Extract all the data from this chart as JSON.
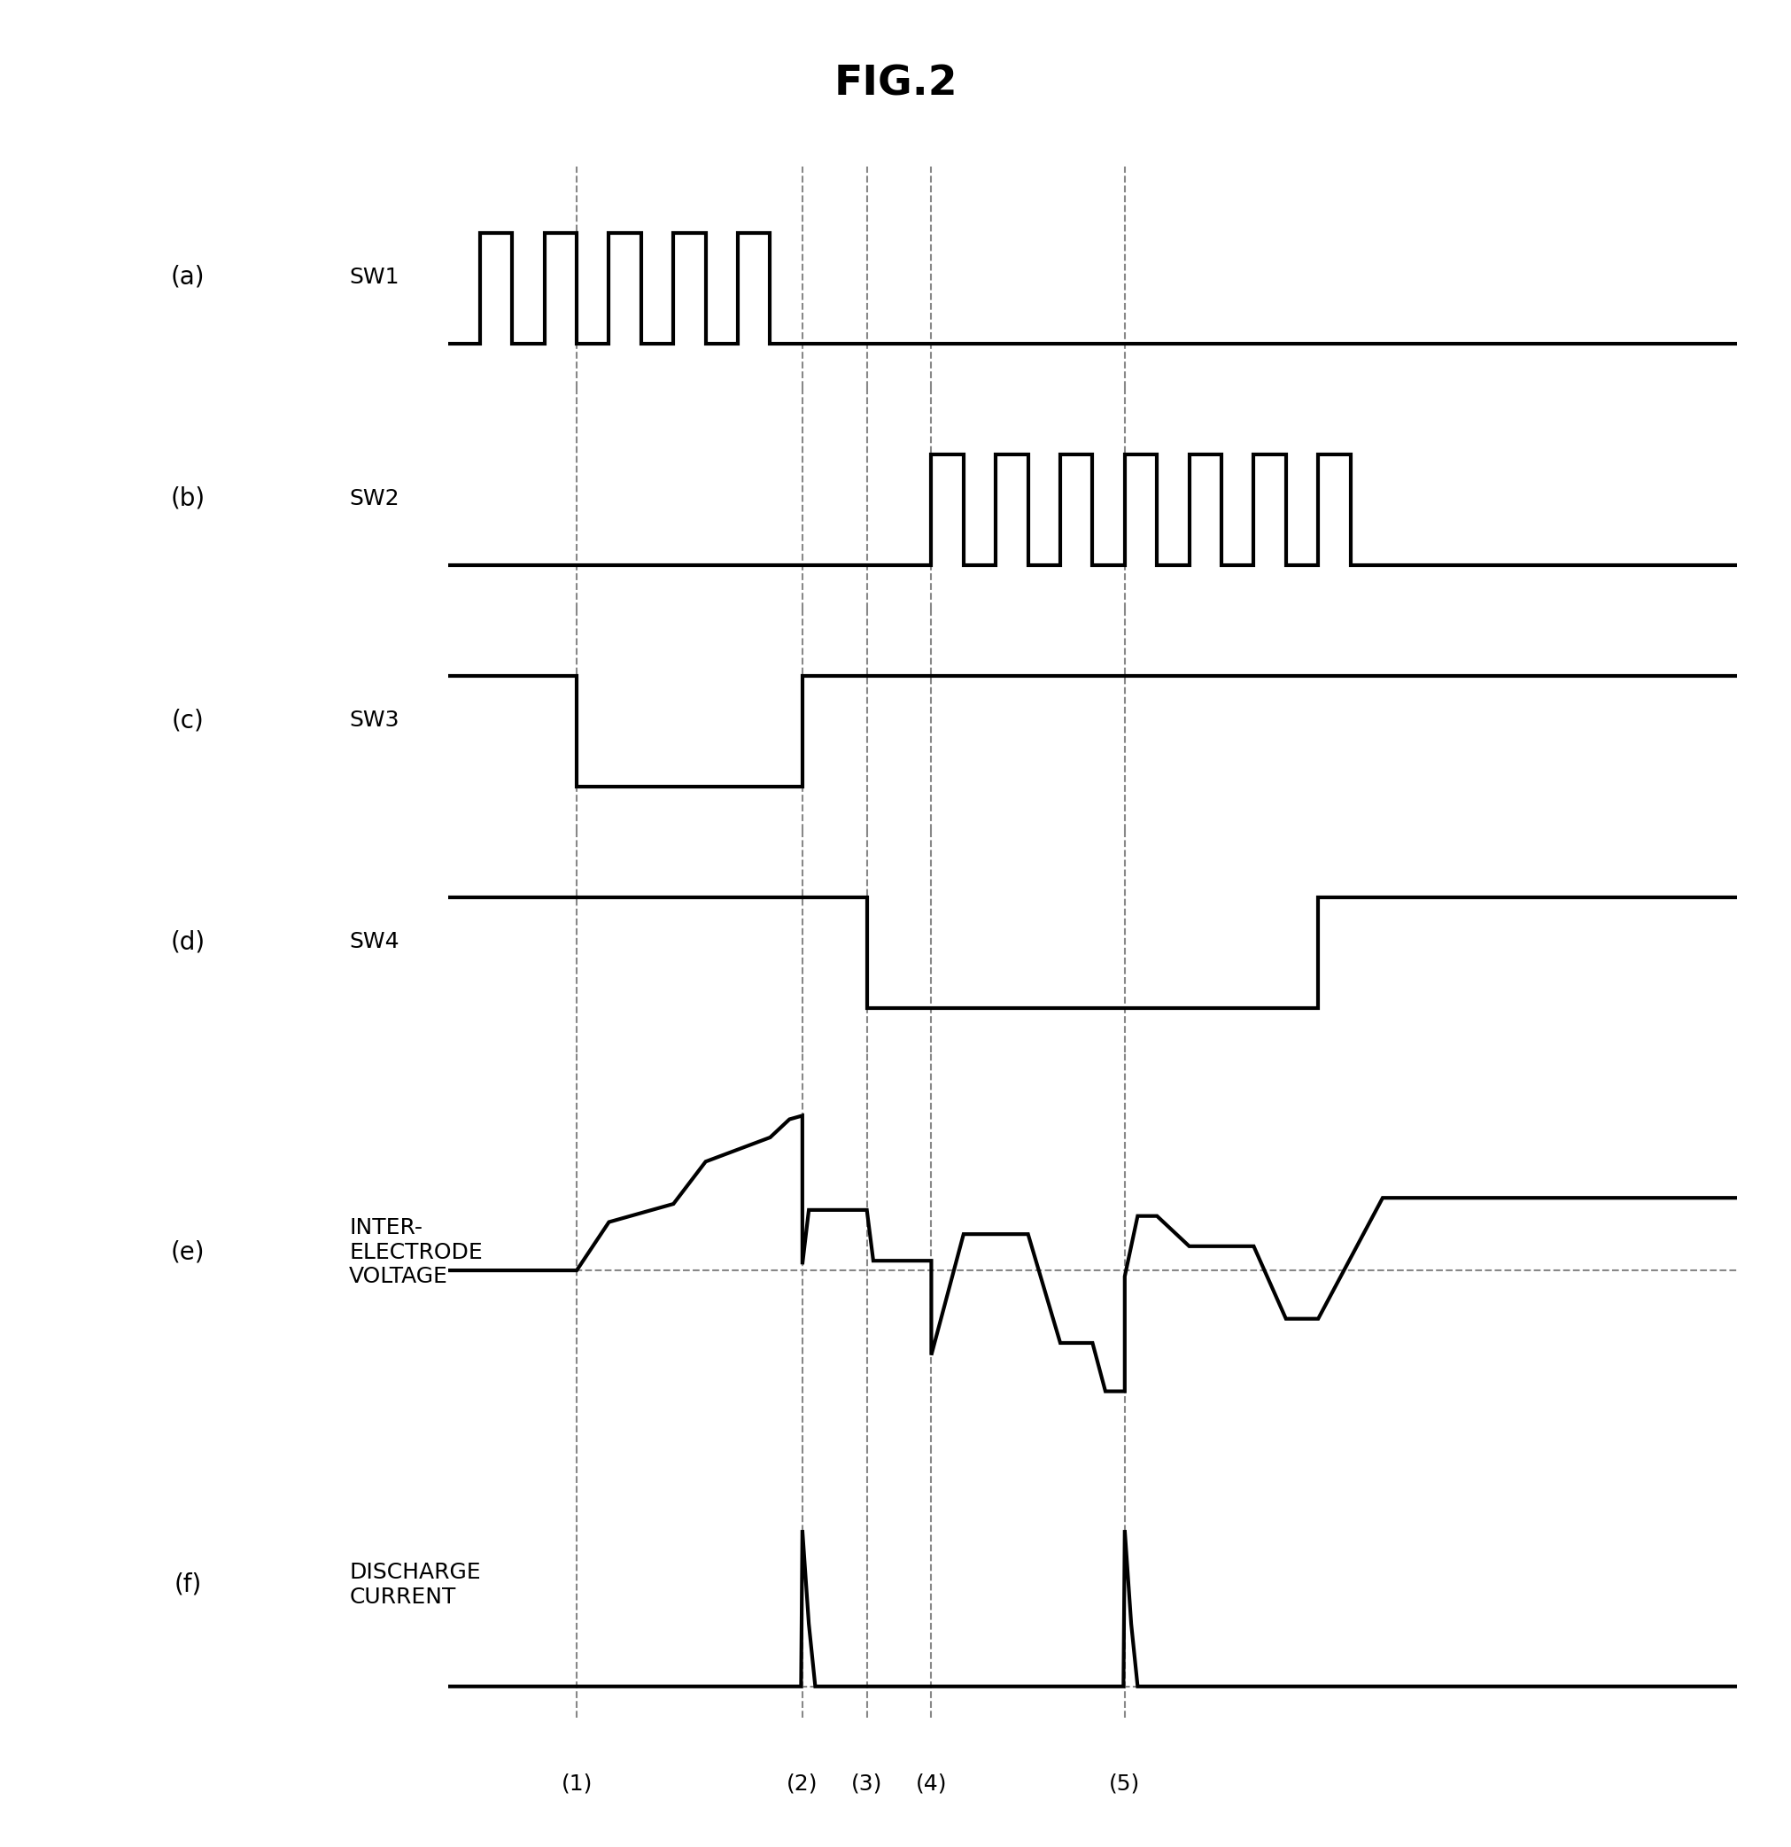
{
  "title": "FIG.2",
  "title_fontsize": 34,
  "background_color": "#ffffff",
  "line_color": "#000000",
  "dashed_color": "#888888",
  "vline_positions": [
    2.0,
    5.5,
    6.5,
    7.5,
    10.5
  ],
  "vline_labels": [
    "(1)",
    "(2)",
    "(3)",
    "(4)",
    "(5)"
  ],
  "subplots": [
    "(a)",
    "(b)",
    "(c)",
    "(d)",
    "(e)",
    "(f)"
  ],
  "subplot_labels": [
    "SW1",
    "SW2",
    "SW3",
    "SW4",
    "INTER-\nELECTRODE\nVOLTAGE",
    "DISCHARGE\nCURRENT"
  ],
  "sw1_x": [
    0.0,
    0.5,
    0.5,
    1.0,
    1.0,
    1.5,
    1.5,
    2.0,
    2.0,
    2.5,
    2.5,
    3.0,
    3.0,
    3.5,
    3.5,
    4.0,
    4.0,
    4.5,
    4.5,
    5.0,
    5.0,
    5.5,
    5.5,
    6.0,
    6.0,
    20.0
  ],
  "sw1_y": [
    0.0,
    0.0,
    1.0,
    1.0,
    0.0,
    0.0,
    1.0,
    1.0,
    0.0,
    0.0,
    1.0,
    1.0,
    0.0,
    0.0,
    1.0,
    1.0,
    0.0,
    0.0,
    1.0,
    1.0,
    0.0,
    0.0,
    0.0,
    0.0,
    0.0,
    0.0
  ],
  "sw2_x": [
    0.0,
    7.5,
    7.5,
    8.0,
    8.0,
    8.5,
    8.5,
    9.0,
    9.0,
    9.5,
    9.5,
    10.0,
    10.0,
    10.5,
    10.5,
    11.0,
    11.0,
    11.5,
    11.5,
    12.0,
    12.0,
    12.5,
    12.5,
    13.0,
    13.0,
    13.5,
    13.5,
    14.0,
    14.0,
    14.5,
    14.5,
    20.0
  ],
  "sw2_y": [
    0.0,
    0.0,
    1.0,
    1.0,
    0.0,
    0.0,
    1.0,
    1.0,
    0.0,
    0.0,
    1.0,
    1.0,
    0.0,
    0.0,
    1.0,
    1.0,
    0.0,
    0.0,
    1.0,
    1.0,
    0.0,
    0.0,
    1.0,
    1.0,
    0.0,
    0.0,
    1.0,
    1.0,
    0.0,
    0.0,
    0.0,
    0.0
  ],
  "sw3_x": [
    0.0,
    2.0,
    2.0,
    5.5,
    5.5,
    20.0
  ],
  "sw3_y": [
    1.0,
    1.0,
    0.0,
    0.0,
    1.0,
    1.0
  ],
  "sw4_x": [
    0.0,
    6.5,
    6.5,
    13.5,
    13.5,
    20.0
  ],
  "sw4_y": [
    1.0,
    1.0,
    0.0,
    0.0,
    1.0,
    1.0
  ],
  "voltage_x": [
    0.0,
    2.0,
    2.5,
    3.5,
    4.0,
    5.0,
    5.3,
    5.5,
    5.5,
    5.6,
    6.5,
    6.6,
    7.5,
    7.5,
    8.0,
    9.0,
    9.5,
    10.0,
    10.2,
    10.5,
    10.5,
    10.7,
    11.0,
    11.5,
    12.5,
    13.0,
    13.5,
    14.5,
    20.0
  ],
  "voltage_y": [
    0.0,
    0.0,
    0.4,
    0.55,
    0.9,
    1.1,
    1.25,
    1.28,
    0.05,
    0.5,
    0.5,
    0.08,
    0.08,
    -0.7,
    0.3,
    0.3,
    -0.6,
    -0.6,
    -1.0,
    -1.0,
    -0.05,
    0.45,
    0.45,
    0.2,
    0.2,
    -0.4,
    -0.4,
    0.6,
    0.6
  ],
  "current_x": [
    0.0,
    5.48,
    5.48,
    5.5,
    5.6,
    5.7,
    10.48,
    10.48,
    10.5,
    10.6,
    10.7,
    20.0
  ],
  "current_y": [
    0.0,
    0.0,
    0.0,
    1.0,
    0.4,
    0.0,
    0.0,
    0.0,
    1.0,
    0.4,
    0.0,
    0.0
  ],
  "xlim": [
    0.0,
    20.0
  ],
  "subplot_height_ratios": [
    1.0,
    1.0,
    1.0,
    1.0,
    1.8,
    1.2
  ],
  "lw": 3.0,
  "lw_dashed": 1.5
}
